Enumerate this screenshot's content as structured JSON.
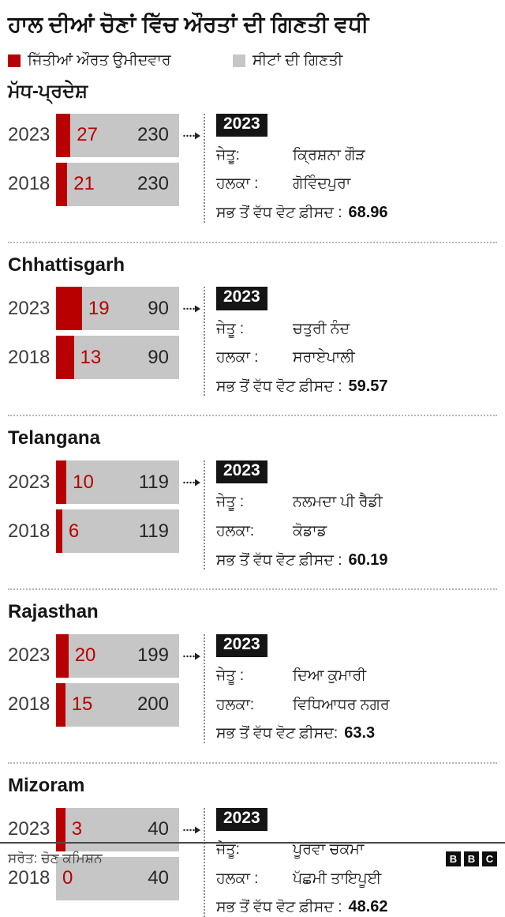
{
  "title": "ਹਾਲ ਦੀਆਂ ਚੋਣਾਂ ਵਿੱਚ ਔਰਤਾਂ ਦੀ ਗਿਣਤੀ ਵਧੀ",
  "colors": {
    "won_red": "#b80000",
    "seats_gray": "#c6c6c6",
    "badge_black": "#151515"
  },
  "legend": {
    "won_label": "ਜਿੱਤੀਆਂ ਔਰਤ ਉਮੀਦਵਾਰ",
    "seats_label": "ਸੀਟਾਂ ਦੀ ਗਿਣਤੀ"
  },
  "chart_data": {
    "type": "bar",
    "title": "ਹਾਲ ਦੀਆਂ ਚੋਣਾਂ ਵਿੱਚ ਔਰਤਾਂ ਦੀ ਗਿਣਤੀ ਵਧੀ",
    "legend": [
      "ਜਿੱਤੀਆਂ ਔਰਤ ਉਮੀਦਵਾਰ",
      "ਸੀਟਾਂ ਦੀ ਗਿਣਤੀ"
    ],
    "bar_orientation": "horizontal",
    "sections": [
      {
        "state": "ਮੱਧ-ਪ੍ਰਦੇਸ਼",
        "bars": [
          {
            "year": "2023",
            "women_won": 27,
            "total_seats": 230
          },
          {
            "year": "2018",
            "women_won": 21,
            "total_seats": 230
          }
        ],
        "info": {
          "badge": "2023",
          "winner_label": "ਜੇਤੂ:",
          "winner": "ਕ੍ਰਿਸ਼ਨਾ ਗੌੜ",
          "constituency_label": "ਹਲਕਾ :",
          "constituency": "ਗੋਵਿੰਦਪੁਰਾ",
          "vote_label": "ਸਭ ਤੋਂ ਵੱਧ ਵੋਟ ਫ਼ੀਸਦ :",
          "vote_pct": "68.96"
        }
      },
      {
        "state": "Chhattisgarh",
        "bars": [
          {
            "year": "2023",
            "women_won": 19,
            "total_seats": 90
          },
          {
            "year": "2018",
            "women_won": 13,
            "total_seats": 90
          }
        ],
        "info": {
          "badge": "2023",
          "winner_label": "ਜੇਤੂ :",
          "winner": "ਚਤੁਰੀ ਨੰਦ",
          "constituency_label": "ਹਲਕਾ :",
          "constituency": "ਸਰਾਏਪਾਲੀ",
          "vote_label": "ਸਭ ਤੋਂ ਵੱਧ ਵੋਟ ਫ਼ੀਸਦ :",
          "vote_pct": "59.57"
        }
      },
      {
        "state": "Telangana",
        "bars": [
          {
            "year": "2023",
            "women_won": 10,
            "total_seats": 119
          },
          {
            "year": "2018",
            "women_won": 6,
            "total_seats": 119
          }
        ],
        "info": {
          "badge": "2023",
          "winner_label": "ਜੇਤੂ :",
          "winner": "ਨਲਮਦਾ ਪੀ ਰੈਡੀ",
          "constituency_label": "ਹਲਕਾ:",
          "constituency": "ਕੋਡਾਡ",
          "vote_label": "ਸਭ ਤੋਂ ਵੱਧ ਵੋਟ ਫ਼ੀਸਦ :",
          "vote_pct": "60.19"
        }
      },
      {
        "state": "Rajasthan",
        "bars": [
          {
            "year": "2023",
            "women_won": 20,
            "total_seats": 199
          },
          {
            "year": "2018",
            "women_won": 15,
            "total_seats": 200
          }
        ],
        "info": {
          "badge": "2023",
          "winner_label": "ਜੇਤੂ :",
          "winner": "ਦਿਆ ਕੁਮਾਰੀ",
          "constituency_label": "ਹਲਕਾ:",
          "constituency": "ਵਿਧਿਆਧਰ ਨਗਰ",
          "vote_label": "ਸਭ ਤੋਂ ਵੱਧ ਵੋਟ ਫ਼ੀਸਦ:",
          "vote_pct": "63.3"
        }
      },
      {
        "state": "Mizoram",
        "bars": [
          {
            "year": "2023",
            "women_won": 3,
            "total_seats": 40
          },
          {
            "year": "2018",
            "women_won": 0,
            "total_seats": 40
          }
        ],
        "info": {
          "badge": "2023",
          "winner_label": "ਜੇਤੂ:",
          "winner": "ਪੂਰਵਾ ਚਕਮਾ",
          "constituency_label": "ਹਲਕਾ :",
          "constituency": "ਪੱਛਮੀ ਤਾਇਪੂਈ",
          "vote_label": "ਸਭ ਤੋਂ ਵੱਧ ਵੋਟ ਫ਼ੀਸਦ :",
          "vote_pct": "48.62"
        }
      }
    ]
  },
  "footer": {
    "source": "ਸਰੋਤ: ਚੋਣ ਕਮਿਸ਼ਨ",
    "logo": [
      "B",
      "B",
      "C"
    ]
  }
}
